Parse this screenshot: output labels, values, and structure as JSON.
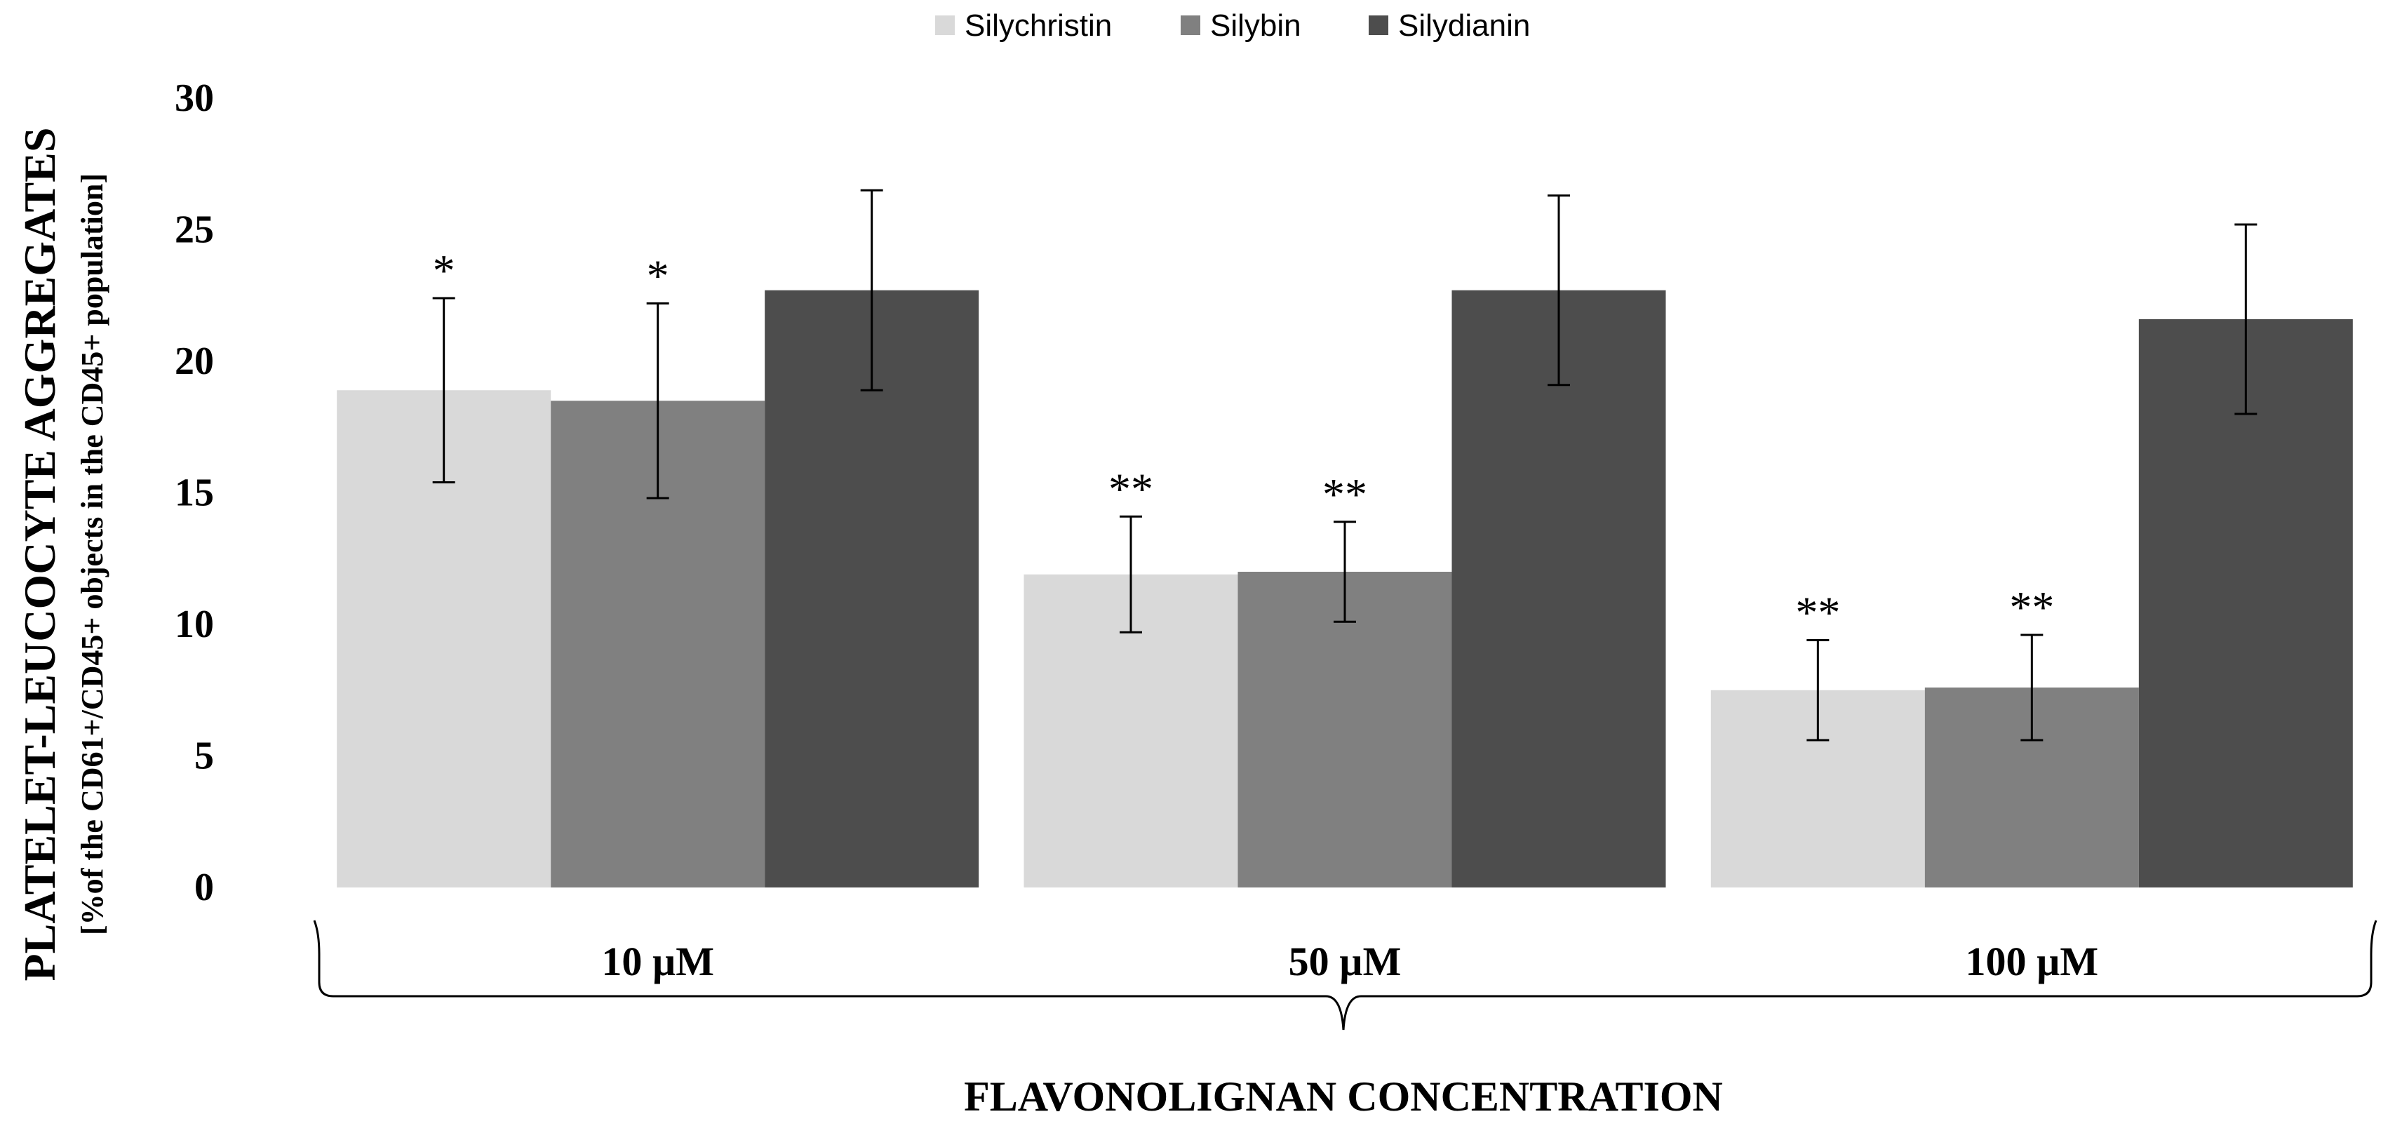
{
  "chart_data": {
    "type": "bar",
    "title": "",
    "xlabel": "FLAVONOLIGNAN CONCENTRATION",
    "ylabel": "PLATELET-LEUCOCYTE AGGREGATES",
    "ylabel_sub": "[%of the CD61+/CD45+ objects in the  CD45+ population]",
    "categories": [
      "10 µM",
      "50 µM",
      "100 µM"
    ],
    "ylim": [
      0,
      30
    ],
    "yticks": [
      0,
      5,
      10,
      15,
      20,
      25,
      30
    ],
    "grid": false,
    "legend_position": "top-center",
    "series": [
      {
        "name": "Silychristin",
        "color": "#d9d9d9",
        "values": [
          18.9,
          11.9,
          7.5
        ],
        "errors": [
          3.5,
          2.2,
          1.9
        ],
        "significance": [
          "*",
          "**",
          "**"
        ]
      },
      {
        "name": "Silybin",
        "color": "#808080",
        "values": [
          18.5,
          12.0,
          7.6
        ],
        "errors": [
          3.7,
          1.9,
          2.0
        ],
        "significance": [
          "*",
          "**",
          "**"
        ]
      },
      {
        "name": "Silydianin",
        "color": "#4d4d4d",
        "values": [
          22.7,
          22.7,
          21.6
        ],
        "errors": [
          3.8,
          3.6,
          3.6
        ],
        "significance": [
          "",
          "",
          ""
        ]
      }
    ]
  }
}
